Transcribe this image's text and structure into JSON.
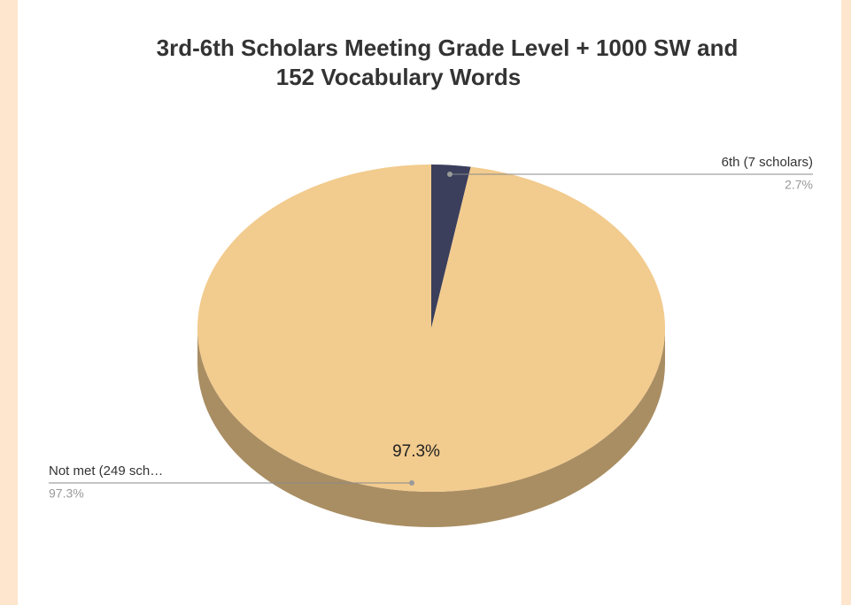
{
  "chart_data": {
    "type": "pie",
    "title": "3rd-6th Scholars Meeting Grade Level + 1000 SW and",
    "subtitle": "152 Vocabulary Words",
    "categories": [
      "6th (7 scholars)",
      "Not met (249 sch…"
    ],
    "values": [
      2.7,
      97.3
    ],
    "value_labels": [
      "2.7%",
      "97.3%"
    ],
    "colors": [
      "#3b3f5c",
      "#f2cb8e"
    ],
    "three_d": true
  }
}
